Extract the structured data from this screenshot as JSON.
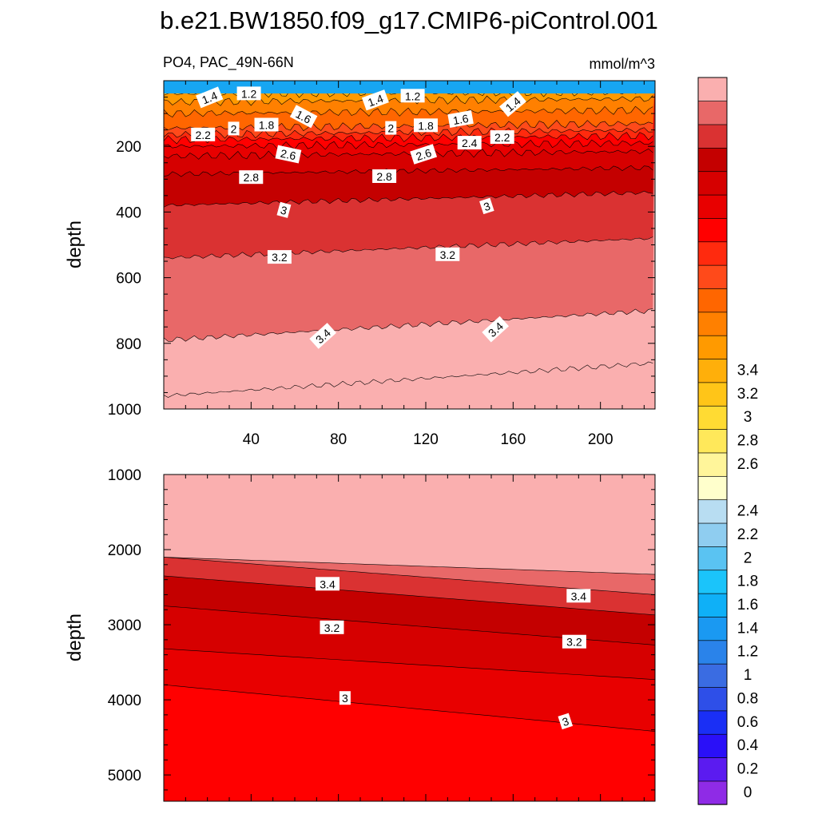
{
  "title": "b.e21.BW1850.f09_g17.CMIP6-piControl.001",
  "variable_label": "PO4, PAC_49N-66N",
  "units_label": "mmol/m^3",
  "colors": {
    "levels": [
      "#8F2BE6",
      "#5B1BF0",
      "#2A10F8",
      "#1A2FF5",
      "#2E4FE8",
      "#3A6CE2",
      "#2A83EA",
      "#1A99F2",
      "#0FB0F7",
      "#1BC4FA",
      "#5AC3F2",
      "#8FCDF0",
      "#B8DDF2",
      "#FFFFCC",
      "#FFF59A",
      "#FFE85A",
      "#FFDB33",
      "#FFC518",
      "#FFAF0A",
      "#FF9A00",
      "#FF8000",
      "#FF6600",
      "#FF4A1A",
      "#FF2A0E",
      "#FF0000",
      "#E80000",
      "#D60000",
      "#C40000",
      "#DA3232",
      "#E86868",
      "#FAAFAF"
    ]
  },
  "chart_data": [
    {
      "type": "contour",
      "panel": "upper",
      "xlabel": "",
      "ylabel": "depth",
      "xlim": [
        0,
        225
      ],
      "ylim": [
        1000,
        0
      ],
      "xticks": [
        "40",
        "80",
        "120",
        "160",
        "200"
      ],
      "yticks": [
        "200",
        "400",
        "600",
        "800",
        "1000"
      ],
      "contour_labels": [
        {
          "text": "1.4",
          "x": 21,
          "y": 52,
          "angle": -22
        },
        {
          "text": "1.2",
          "x": 39,
          "y": 40,
          "angle": 0
        },
        {
          "text": "1.6",
          "x": 64,
          "y": 110,
          "angle": 28
        },
        {
          "text": "1.8",
          "x": 47,
          "y": 135,
          "angle": 0
        },
        {
          "text": "2",
          "x": 32,
          "y": 147,
          "angle": 0
        },
        {
          "text": "2.2",
          "x": 18,
          "y": 165,
          "angle": 0
        },
        {
          "text": "2.6",
          "x": 57,
          "y": 225,
          "angle": 12
        },
        {
          "text": "2.8",
          "x": 40,
          "y": 295,
          "angle": 0
        },
        {
          "text": "3",
          "x": 55,
          "y": 395,
          "angle": 15
        },
        {
          "text": "3.2",
          "x": 53,
          "y": 538,
          "angle": 0
        },
        {
          "text": "3.4",
          "x": 73,
          "y": 778,
          "angle": -42
        },
        {
          "text": "1.4",
          "x": 97,
          "y": 60,
          "angle": -20
        },
        {
          "text": "1.2",
          "x": 114,
          "y": 47,
          "angle": 0
        },
        {
          "text": "2",
          "x": 104,
          "y": 145,
          "angle": 0
        },
        {
          "text": "1.8",
          "x": 120,
          "y": 137,
          "angle": 0
        },
        {
          "text": "1.6",
          "x": 136,
          "y": 118,
          "angle": -10
        },
        {
          "text": "2.4",
          "x": 140,
          "y": 190,
          "angle": 0
        },
        {
          "text": "2.2",
          "x": 155,
          "y": 173,
          "angle": 0
        },
        {
          "text": "2.6",
          "x": 119,
          "y": 225,
          "angle": -18
        },
        {
          "text": "2.8",
          "x": 101,
          "y": 292,
          "angle": 0
        },
        {
          "text": "3",
          "x": 148,
          "y": 383,
          "angle": -18
        },
        {
          "text": "3.2",
          "x": 130,
          "y": 530,
          "angle": 0
        },
        {
          "text": "3.4",
          "x": 152,
          "y": 758,
          "angle": -42
        },
        {
          "text": "1.4",
          "x": 160,
          "y": 72,
          "angle": -40
        }
      ]
    },
    {
      "type": "contour",
      "panel": "lower",
      "xlabel": "",
      "ylabel": "depth",
      "xlim": [
        0,
        225
      ],
      "ylim": [
        5350,
        1000
      ],
      "yticks": [
        "1000",
        "2000",
        "3000",
        "4000",
        "5000"
      ],
      "contour_labels": [
        {
          "text": "3.4",
          "x": 75,
          "y": 2460,
          "angle": 0
        },
        {
          "text": "3.2",
          "x": 77,
          "y": 3040,
          "angle": 0
        },
        {
          "text": "3",
          "x": 83,
          "y": 3980,
          "angle": 0
        },
        {
          "text": "3.4",
          "x": 190,
          "y": 2620,
          "angle": 0
        },
        {
          "text": "3.2",
          "x": 188,
          "y": 3230,
          "angle": 0
        },
        {
          "text": "3",
          "x": 184,
          "y": 4290,
          "angle": -18
        }
      ]
    },
    {
      "type": "colorbar",
      "tick_labels": [
        "0",
        "0.2",
        "0.4",
        "0.6",
        "0.8",
        "1",
        "1.2",
        "1.4",
        "1.6",
        "1.8",
        "2",
        "2.2",
        "2.4",
        "2.6",
        "2.8",
        "3",
        "3.2",
        "3.4"
      ]
    }
  ]
}
